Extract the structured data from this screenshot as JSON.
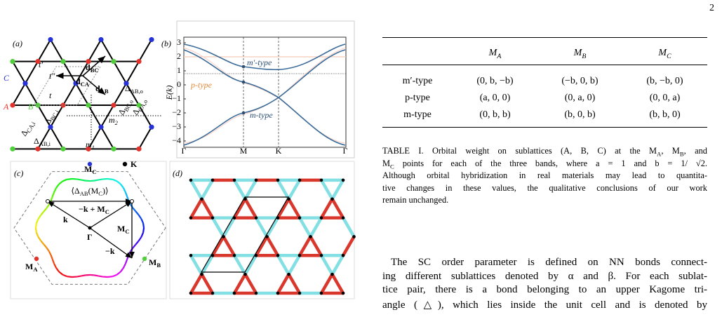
{
  "page_number": "2",
  "figure": {
    "a": {
      "label": "(a)",
      "sites": [
        "A",
        "B",
        "C"
      ],
      "hoppings": [
        "t′",
        "t″",
        "t"
      ],
      "vectors": [
        [
          "d",
          {
            "sub": "BC"
          }
        ],
        [
          "d",
          {
            "sub": "CA"
          }
        ],
        [
          "d",
          {
            "sub": "AB"
          }
        ]
      ],
      "bonds": [
        [
          "Δ",
          {
            "sub": "AB,o"
          }
        ],
        [
          "Δ",
          {
            "sub": "BC,o"
          }
        ],
        [
          "Δ",
          {
            "sub": "CA,o"
          }
        ],
        [
          "Δ",
          {
            "sub": "CA,i"
          }
        ],
        [
          "Δ",
          {
            "sub": "BC,i"
          }
        ],
        [
          "Δ",
          {
            "sub": "AB,i"
          }
        ]
      ],
      "mirrors": [
        [
          "m",
          {
            "sub": "2"
          }
        ],
        [
          "m",
          {
            "sub": "1"
          }
        ]
      ]
    },
    "b": {
      "label": "(b)",
      "ylabel": "E(k)",
      "yticks": [
        "3",
        "2",
        "1",
        "0",
        "−1",
        "−2",
        "−3",
        "−4"
      ],
      "xticks": [
        "Γ",
        "M",
        "K",
        "Γ"
      ],
      "bands": [
        "m′-type",
        "p-type",
        "m-type"
      ]
    },
    "c": {
      "label": "(c)",
      "points": [
        [
          "M",
          {
            "sub": "C"
          }
        ],
        "K",
        [
          "M",
          {
            "sub": "A"
          }
        ],
        [
          "M",
          {
            "sub": "B"
          }
        ]
      ],
      "order": [
        "⟨Δ",
        {
          "sub": "AB"
        },
        "(M",
        {
          "sub": "C"
        },
        ")⟩"
      ],
      "vectors": [
        [
          "−k + M",
          {
            "sub": "C"
          }
        ],
        "k",
        [
          "M",
          {
            "sub": "C"
          }
        ],
        "Γ",
        "−k"
      ]
    },
    "d": {
      "label": "(d)"
    }
  },
  "table": {
    "header": [
      "",
      [
        "M",
        {
          "sub": "A"
        }
      ],
      [
        "M",
        {
          "sub": "B"
        }
      ],
      [
        "M",
        {
          "sub": "C"
        }
      ]
    ],
    "rows": [
      [
        "m′-type",
        "(0, b, −b)",
        "(−b, 0, b)",
        "(b, −b, 0)"
      ],
      [
        "p-type",
        "(a, 0, 0)",
        "(0, a, 0)",
        "(0, 0, a)"
      ],
      [
        "m-type",
        "(0, b, b)",
        "(b, 0, b)",
        "(b, b, 0)"
      ]
    ],
    "caption": [
      [
        "TABLE I. Orbital weight on sublattices (A, B, C) at the M",
        {
          "sub": "A"
        },
        ", M",
        {
          "sub": "B"
        },
        ", and"
      ],
      [
        "M",
        {
          "sub": "C"
        },
        " points for each of the three bands, where a = 1 and b = 1/ √2."
      ],
      [
        "Although orbital hybridization in real materials may lead to quantita-"
      ],
      [
        "tive changes in these values, the qualitative conclusions of our work"
      ],
      [
        "remain unchanged."
      ]
    ]
  },
  "body": [
    "The SC order parameter is defined on NN bonds connect-",
    "ing different sublattices denoted by α and β. For each sublat-",
    "tice pair, there is a bond belonging to an upper Kagome tri-",
    "angle (△), which lies inside the unit cell and is denoted by"
  ]
}
